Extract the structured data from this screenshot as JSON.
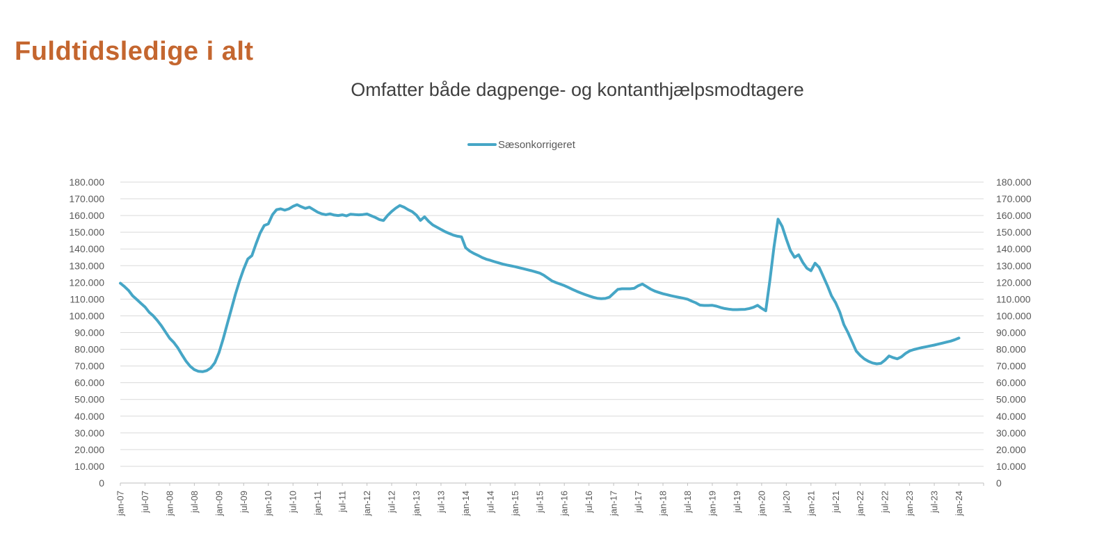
{
  "title": "Fuldtidsledige i alt",
  "chart_data": {
    "type": "line",
    "title": "Omfatter både dagpenge- og kontanthjælpsmodtagere",
    "legend_position": "top",
    "grid": true,
    "ylim": [
      0,
      180000
    ],
    "y_tick_step": 10000,
    "y_tick_labels": [
      "0",
      "10.000",
      "20.000",
      "30.000",
      "40.000",
      "50.000",
      "60.000",
      "70.000",
      "80.000",
      "90.000",
      "100.000",
      "110.000",
      "120.000",
      "130.000",
      "140.000",
      "150.000",
      "160.000",
      "170.000",
      "180.000"
    ],
    "x_tick_labels": [
      "jan-07",
      "jul-07",
      "jan-08",
      "jul-08",
      "jan-09",
      "jul-09",
      "jan-10",
      "jul-10",
      "jan-11",
      "jul-11",
      "jan-12",
      "jul-12",
      "jan-13",
      "jul-13",
      "jan-14",
      "jul-14",
      "jan-15",
      "jul-15",
      "jan-16",
      "jul-16",
      "jan-17",
      "jul-17",
      "jan-18",
      "jul-18",
      "jan-19",
      "jul-19",
      "jan-20",
      "jul-20",
      "jan-21",
      "jul-21",
      "jan-22",
      "jul-22",
      "jan-23",
      "jul-23",
      "jan-24"
    ],
    "x_unit": "month",
    "x_start": "jan-07",
    "x_end": "jan-24",
    "colors": {
      "line": "#46a6c6",
      "title": "#c4662f",
      "subtitle": "#3f3f3f",
      "axis_text": "#595959",
      "gridline": "#d9d9d9",
      "axis_line": "#bfbfbf"
    },
    "series": [
      {
        "name": "Sæsonkorrigeret",
        "values": [
          119500,
          117500,
          115200,
          112000,
          109800,
          107500,
          105300,
          102200,
          100000,
          97200,
          94000,
          90300,
          86600,
          84100,
          80800,
          76700,
          72800,
          69800,
          67800,
          66800,
          66600,
          67200,
          68800,
          72000,
          78000,
          86000,
          95000,
          104000,
          113000,
          121000,
          128000,
          134000,
          136000,
          143000,
          149500,
          154000,
          155000,
          160500,
          163500,
          164000,
          163200,
          164000,
          165500,
          166500,
          165300,
          164300,
          165000,
          163500,
          162000,
          161000,
          160500,
          161000,
          160300,
          160000,
          160400,
          159800,
          160800,
          160600,
          160400,
          160600,
          160900,
          159900,
          158900,
          157600,
          157000,
          160000,
          162400,
          164400,
          166000,
          165000,
          163500,
          162300,
          160300,
          157100,
          159200,
          156500,
          154400,
          153000,
          151700,
          150300,
          149300,
          148300,
          147600,
          147200,
          140700,
          138700,
          137300,
          136200,
          134900,
          133900,
          133200,
          132400,
          131700,
          131000,
          130400,
          129900,
          129400,
          128800,
          128200,
          127600,
          127000,
          126300,
          125600,
          124300,
          122600,
          120900,
          119900,
          119000,
          118100,
          117000,
          115800,
          114700,
          113700,
          112800,
          111900,
          111100,
          110500,
          110300,
          110400,
          111200,
          113500,
          115800,
          116200,
          116200,
          116200,
          116500,
          118000,
          119000,
          117500,
          116000,
          114800,
          114000,
          113200,
          112600,
          112000,
          111500,
          111000,
          110500,
          109900,
          108800,
          107800,
          106400,
          106200,
          106200,
          106300,
          105800,
          105000,
          104400,
          104000,
          103700,
          103700,
          103800,
          103900,
          104400,
          105100,
          106300,
          104500,
          103000,
          121000,
          141000,
          157800,
          153500,
          146000,
          139000,
          135000,
          136500,
          132000,
          128500,
          127000,
          131500,
          129000,
          123600,
          118100,
          112000,
          107800,
          102300,
          94800,
          90000,
          84500,
          79000,
          76300,
          74200,
          72800,
          71800,
          71300,
          71600,
          73500,
          76000,
          75000,
          74300,
          75500,
          77500,
          79000,
          79800,
          80400,
          81000,
          81500,
          82000,
          82500,
          83100,
          83700,
          84300,
          84900,
          85700,
          86700
        ]
      }
    ]
  }
}
